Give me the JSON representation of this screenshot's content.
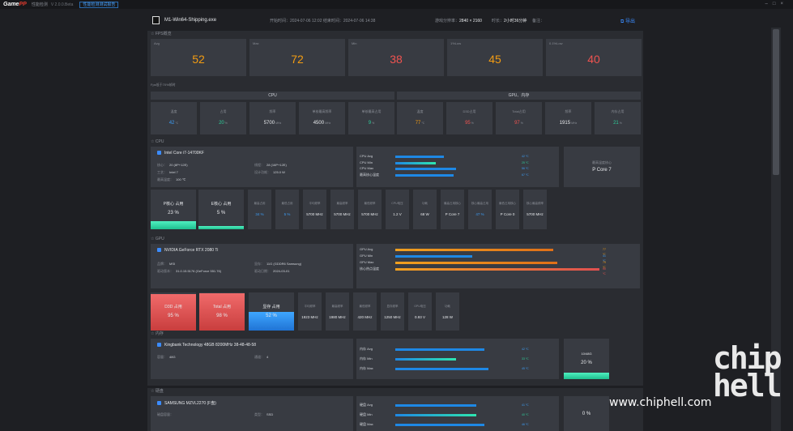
{
  "app": {
    "logo_a": "Game",
    "logo_b": "PP",
    "subtitle": "性能检测",
    "version": "V 2.0.0.Beta",
    "promo": "性能检测测试报告"
  },
  "header": {
    "exe": "M1-Win64-Shipping.exe",
    "time": "开始时间：2024-07-06 12:02  结束时间：2024-07-06 14:38",
    "res_label": "游戏分辨率：",
    "res_value": "2840 × 2160",
    "dur_label": "时长：",
    "dur_value": "2小时36分钟",
    "note": "备注：",
    "export": "导出"
  },
  "fps": {
    "title": "FPS概览",
    "cards": [
      {
        "label": "Avg",
        "value": "52",
        "color": "orange"
      },
      {
        "label": "Max",
        "value": "72",
        "color": "orange"
      },
      {
        "label": "Min",
        "value": "38",
        "color": "red"
      },
      {
        "label": "1%Low",
        "value": "45",
        "color": "orange"
      },
      {
        "label": "0.1%Low",
        "value": "40",
        "color": "red"
      }
    ]
  },
  "thread": {
    "title": "Fps低于70%帧时",
    "cpu_header": "CPU",
    "gpu_header": "GPU、内存",
    "cpu_stats": [
      {
        "label": "温度",
        "value": "42",
        "unit": "℃",
        "color": "blue"
      },
      {
        "label": "占用",
        "value": "20",
        "unit": "%",
        "color": "green"
      },
      {
        "label": "频率",
        "value": "5700",
        "unit": "MHz",
        "color": "white"
      },
      {
        "label": "单核最高频率",
        "value": "4500",
        "unit": "MHz",
        "color": "white"
      },
      {
        "label": "单核最高占用",
        "value": "9",
        "unit": "%",
        "color": "green"
      }
    ],
    "gpu_stats": [
      {
        "label": "温度",
        "value": "77",
        "unit": "℃",
        "color": "orange"
      },
      {
        "label": "D3D占用",
        "value": "95",
        "unit": "%",
        "color": "red"
      },
      {
        "label": "Total占用",
        "value": "97",
        "unit": "%",
        "color": "red"
      },
      {
        "label": "频率",
        "value": "1915",
        "unit": "MHz",
        "color": "white"
      },
      {
        "label": "内存占用",
        "value": "21",
        "unit": "%",
        "color": "green"
      }
    ]
  },
  "cpu": {
    "title": "CPU",
    "name": "Intel Core i7-14700KF",
    "info": [
      {
        "k": "核心：",
        "v": "20 (8P+12E)"
      },
      {
        "k": "线程：",
        "v": "28 (16P+12E)"
      },
      {
        "k": "工艺：",
        "v": "Intel 7"
      },
      {
        "k": "设计功耗：",
        "v": "125.0 W"
      },
      {
        "k": "最高温度：",
        "v": "100 ℃"
      }
    ],
    "bars": [
      {
        "label": "CPU Avg",
        "value": "42 ℃"
      },
      {
        "label": "CPU Min",
        "value": "25 ℃"
      },
      {
        "label": "CPU Max",
        "value": "56 ℃"
      },
      {
        "label": "最高核心温度",
        "value": "67 ℃"
      }
    ],
    "hot_core_label": "最高温度核心",
    "hot_core_value": "P Core 7",
    "p_label": "P核心 占用",
    "p_value": "23 %",
    "e_label": "E核心 占用",
    "e_value": "5 %",
    "stats": [
      {
        "label": "最高占用",
        "value": "34 %"
      },
      {
        "label": "最低占用",
        "value": "5 %"
      },
      {
        "label": "平均频率",
        "value": "5700 MHz"
      },
      {
        "label": "最高频率",
        "value": "5700 MHz"
      },
      {
        "label": "最低频率",
        "value": "5700 MHz"
      },
      {
        "label": "CPU电压",
        "value": "1.2 V"
      },
      {
        "label": "功耗",
        "value": "68 W"
      },
      {
        "label": "最高占用核心",
        "value": "P Core 7"
      },
      {
        "label": "核心最高占用",
        "value": "47 %"
      },
      {
        "label": "最低占用核心",
        "value": "P Core 0"
      },
      {
        "label": "核心最高频率",
        "value": "5700 MHz"
      }
    ]
  },
  "gpu": {
    "title": "GPU",
    "name": "NVIDIA GeForce RTX 2080 Ti",
    "info": [
      {
        "k": "品牌：",
        "v": "MSI"
      },
      {
        "k": "显存：",
        "v": "11G (GDDR6 Samsung)"
      },
      {
        "k": "驱动版本：",
        "v": "31.0.15.5176 (GeForce 551.76)"
      },
      {
        "k": "驱动日期：",
        "v": "2024-03-01"
      }
    ],
    "bars": [
      {
        "label": "GPU Avg",
        "value": "77 ℃"
      },
      {
        "label": "GPU Min",
        "value": "41 ℃"
      },
      {
        "label": "GPU Max",
        "value": "79 ℃"
      },
      {
        "label": "核心热点温度",
        "value": "90 ℃"
      }
    ],
    "d3d_label": "D3D 占用",
    "d3d_value": "95 %",
    "total_label": "Total 占用",
    "total_value": "98 %",
    "vram_label": "显存 占用",
    "vram_value": "52 %",
    "stats": [
      {
        "label": "平均频率",
        "value": "1923 MHz"
      },
      {
        "label": "最高频率",
        "value": "1980 MHz"
      },
      {
        "label": "最低频率",
        "value": "420 MHz"
      },
      {
        "label": "显存频率",
        "value": "1250 MHz"
      },
      {
        "label": "GPU电压",
        "value": "0.93 V"
      },
      {
        "label": "功耗",
        "value": "128 W"
      }
    ]
  },
  "memory": {
    "title": "内存",
    "name": "Kingbank Technology 48GB 8200MHz 38-48-48-58",
    "info": [
      {
        "k": "容量：",
        "v": "48G"
      },
      {
        "k": "通道：",
        "v": "4"
      }
    ],
    "bars": [
      {
        "label": "内存 Avg",
        "value": "42 ℃"
      },
      {
        "label": "内存 Min",
        "value": "33 ℃"
      },
      {
        "label": "内存 Max",
        "value": "45 ℃"
      }
    ],
    "usage_label": "10/48G",
    "usage_value": "20 %"
  },
  "disk": {
    "title": "硬盘",
    "name": "SAMSUNG MZVL2270 (F盘)",
    "info": [
      {
        "k": "磁盘容量：",
        "v": ""
      },
      {
        "k": "类型：",
        "v": "SSD"
      }
    ],
    "bars": [
      {
        "label": "硬盘 Avg",
        "value": "41 ℃"
      },
      {
        "label": "硬盘 Min",
        "value": "40 ℃"
      },
      {
        "label": "硬盘 Max",
        "value": "46 ℃"
      }
    ],
    "usage_value": "0 %"
  },
  "watermark": {
    "logo": "chip\nhell",
    "url": "www.chiphell.com"
  }
}
